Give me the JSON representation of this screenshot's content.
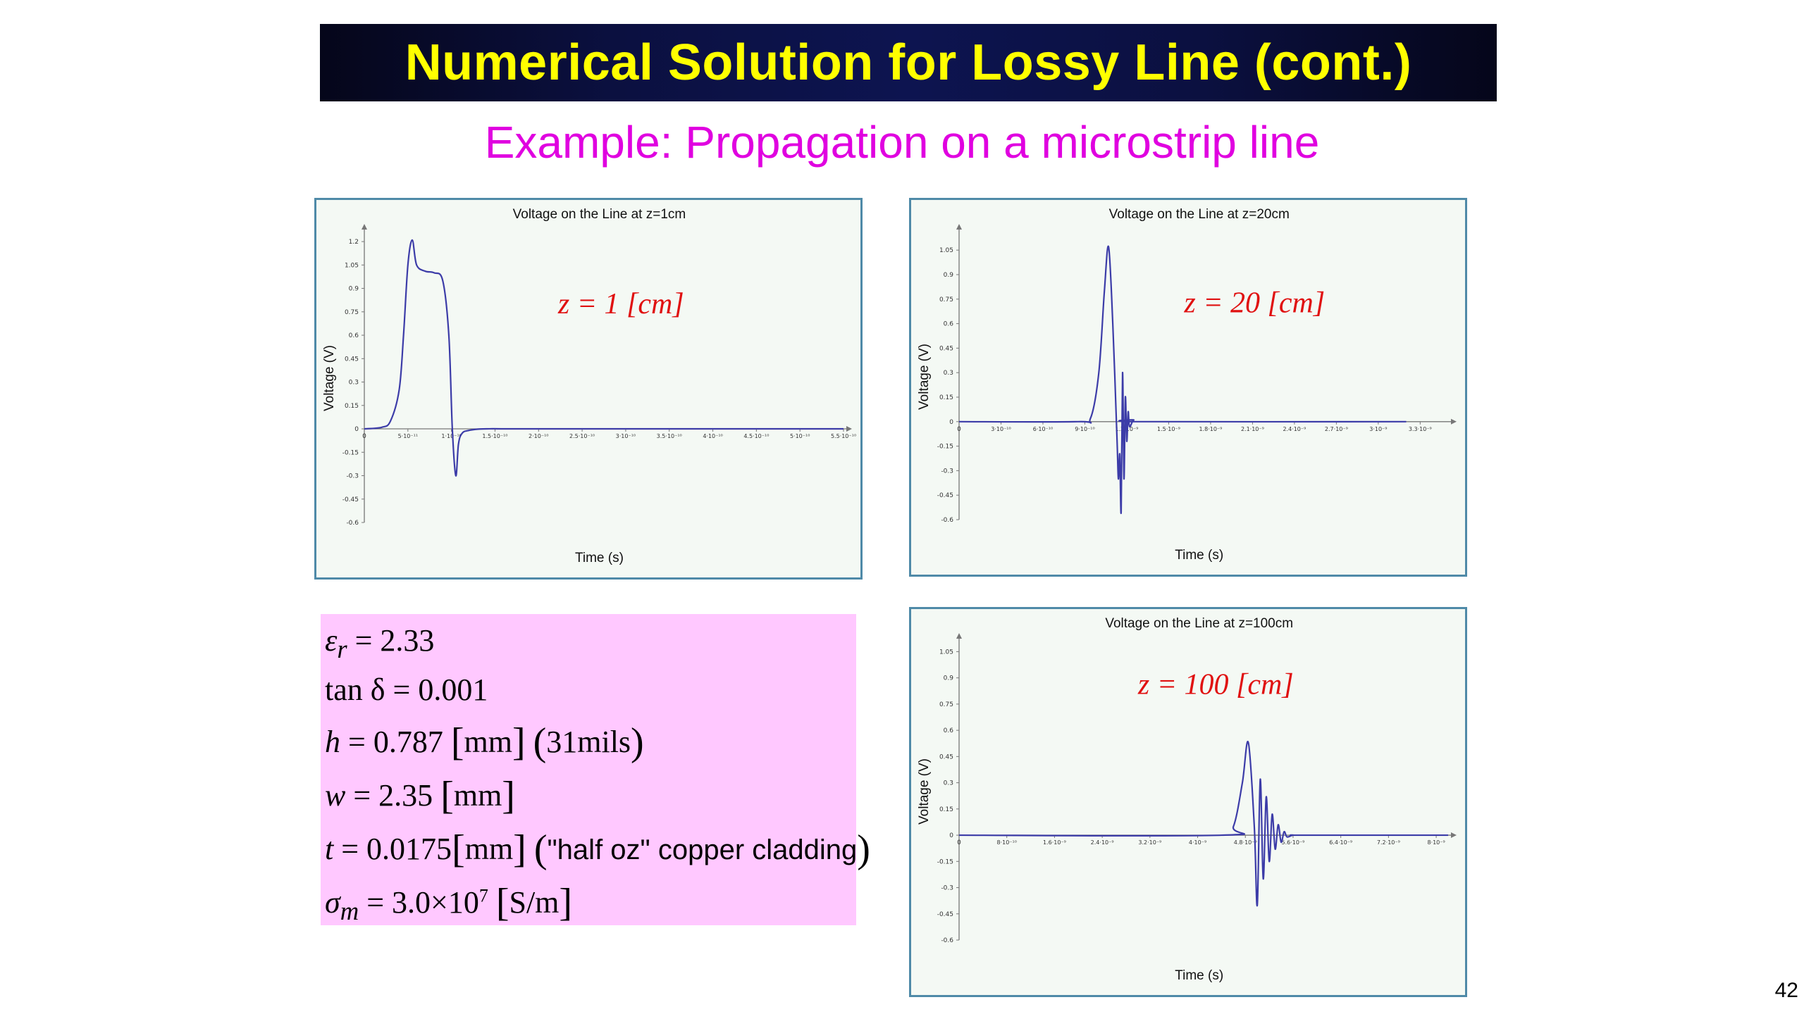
{
  "slide": {
    "title": "Numerical Solution for Lossy Line (cont.)",
    "subtitle": "Example: Propagation on a microstrip line",
    "page_number": "42"
  },
  "params": {
    "er_sym": "ε",
    "er_sub": "r",
    "er_val": "= 2.33",
    "tan_label": "tan δ",
    "tan_val": "= 0.001",
    "h_sym": "h",
    "h_val": "= 0.787",
    "h_unit": "mm",
    "h_note": "31mils",
    "w_sym": "w",
    "w_val": "= 2.35",
    "w_unit": "mm",
    "t_sym": "t",
    "t_val": "= 0.0175",
    "t_unit": "mm",
    "t_note": "\"half oz\" copper cladding",
    "sigma_sym": "σ",
    "sigma_sub": "m",
    "sigma_val": "= 3.0×10",
    "sigma_exp": "7",
    "sigma_unit": "S/m"
  },
  "colors": {
    "title_bg": "#0b1040",
    "title_text": "#ffff00",
    "subtitle": "#e000e0",
    "param_bg": "#ffc8ff",
    "curve": "#3c3ca8",
    "annotation": "#e01010",
    "panel_border": "#4f8aa8",
    "panel_bg": "#f4f9f4"
  },
  "chart_data": [
    {
      "type": "line",
      "title": "Voltage on the Line at z=1cm",
      "annotation": "z = 1 [cm]",
      "xlabel": "Time (s)",
      "ylabel": "Voltage (V)",
      "xlim": [
        0,
        5.5e-10
      ],
      "ylim": [
        -0.6,
        1.25
      ],
      "yticks": [
        "1.2",
        "1.05",
        "0.9",
        "0.75",
        "0.6",
        "0.45",
        "0.3",
        "0.15",
        "0",
        "-0.15",
        "-0.3",
        "-0.45",
        "-0.6"
      ],
      "xticks": [
        "5·10⁻¹¹",
        "1·10⁻¹⁰",
        "1.5·10⁻¹⁰",
        "2·10⁻¹⁰",
        "2.5·10⁻¹⁰",
        "3·10⁻¹⁰",
        "3.5·10⁻¹⁰",
        "4·10⁻¹⁰",
        "4.5·10⁻¹⁰",
        "5·10⁻¹⁰",
        "5.5·10⁻¹⁰"
      ],
      "series": [
        {
          "x": [
            0,
            2e-11,
            3e-11,
            4e-11,
            4.5e-11,
            5e-11,
            5.5e-11,
            6e-11,
            7e-11,
            8e-11,
            9e-11,
            9.7e-11,
            1.01e-10,
            1.05e-10,
            1.08e-10,
            1.12e-10,
            1.2e-10,
            1.4e-10,
            2e-10,
            5.5e-10
          ],
          "y": [
            0,
            0.01,
            0.05,
            0.25,
            0.6,
            1.05,
            1.21,
            1.05,
            1.01,
            1.0,
            0.95,
            0.6,
            0.0,
            -0.3,
            -0.1,
            -0.03,
            -0.01,
            0,
            0,
            0
          ]
        }
      ]
    },
    {
      "type": "line",
      "title": "Voltage on the Line at z=20cm",
      "annotation": "z = 20 [cm]",
      "xlabel": "Time (s)",
      "ylabel": "Voltage (V)",
      "xlim": [
        0,
        3.5e-09
      ],
      "ylim": [
        -0.6,
        1.15
      ],
      "yticks": [
        "1.05",
        "0.9",
        "0.75",
        "0.6",
        "0.45",
        "0.3",
        "0.15",
        "0",
        "-0.15",
        "-0.3",
        "-0.45",
        "-0.6"
      ],
      "xticks": [
        "3·10⁻¹⁰",
        "6·10⁻¹⁰",
        "9·10⁻¹⁰",
        "1.2·10⁻⁹",
        "1.5·10⁻⁹",
        "1.8·10⁻⁹",
        "2.1·10⁻⁹",
        "2.4·10⁻⁹",
        "2.7·10⁻⁹",
        "3·10⁻⁹",
        "3.3·10⁻⁹"
      ],
      "series": [
        {
          "x": [
            0,
            8.5e-10,
            9.4e-10,
            1e-09,
            1.04e-09,
            1.07e-09,
            1.1e-09,
            1.13e-09,
            1.14e-09,
            1.15e-09,
            1.16e-09,
            1.17e-09,
            1.18e-09,
            1.19e-09,
            1.2e-09,
            1.21e-09,
            1.22e-09,
            1.25e-09,
            1.3e-09,
            3.2e-09
          ],
          "y": [
            0,
            0,
            0.02,
            0.3,
            0.8,
            1.07,
            0.6,
            -0.1,
            -0.35,
            -0.2,
            -0.55,
            0.3,
            -0.35,
            0.15,
            -0.12,
            0.06,
            -0.03,
            0.01,
            0,
            0
          ]
        }
      ]
    },
    {
      "type": "line",
      "title": "Voltage on the Line at z=100cm",
      "annotation": "z = 100 [cm]",
      "xlabel": "Time (s)",
      "ylabel": "Voltage (V)",
      "xlim": [
        0,
        8.2e-09
      ],
      "ylim": [
        -0.6,
        1.1
      ],
      "yticks": [
        "1.05",
        "0.9",
        "0.75",
        "0.6",
        "0.45",
        "0.3",
        "0.15",
        "0",
        "-0.15",
        "-0.3",
        "-0.45",
        "-0.6"
      ],
      "xticks": [
        "8·10⁻¹⁰",
        "1.6·10⁻⁹",
        "2.4·10⁻⁹",
        "3.2·10⁻⁹",
        "4·10⁻⁹",
        "4.8·10⁻⁹",
        "5.6·10⁻⁹",
        "6.4·10⁻⁹",
        "7.2·10⁻⁹",
        "8·10⁻⁹"
      ],
      "series": [
        {
          "x": [
            0,
            4.4e-09,
            4.6e-09,
            4.75e-09,
            4.85e-09,
            4.95e-09,
            5e-09,
            5.05e-09,
            5.1e-09,
            5.15e-09,
            5.2e-09,
            5.25e-09,
            5.3e-09,
            5.35e-09,
            5.4e-09,
            5.45e-09,
            5.5e-09,
            5.6e-09,
            5.8e-09,
            8.2e-09
          ],
          "y": [
            0,
            0,
            0.05,
            0.3,
            0.53,
            0.05,
            -0.4,
            0.32,
            -0.25,
            0.22,
            -0.15,
            0.12,
            -0.08,
            0.06,
            -0.04,
            0.02,
            -0.01,
            0,
            0,
            0
          ]
        }
      ]
    }
  ]
}
